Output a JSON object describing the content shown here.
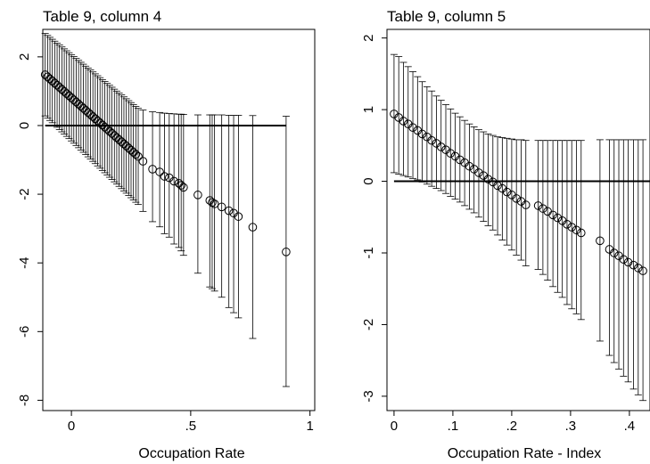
{
  "chart_data": [
    {
      "type": "scatter",
      "title": "Table 9, column 4",
      "xlabel": "Occupation Rate",
      "ylabel": "",
      "xlim": [
        -0.12,
        1.02
      ],
      "ylim": [
        -8.3,
        2.8
      ],
      "xticks": [
        {
          "value": 0,
          "label": "0"
        },
        {
          "value": 0.5,
          "label": ".5"
        },
        {
          "value": 1,
          "label": "1"
        }
      ],
      "yticks": [
        {
          "value": 2,
          "label": "2"
        },
        {
          "value": 0,
          "label": "0"
        },
        {
          "value": -2,
          "label": "-2"
        },
        {
          "value": -4,
          "label": "-4"
        },
        {
          "value": -6,
          "label": "-6"
        },
        {
          "value": -8,
          "label": "-8"
        }
      ],
      "reference_line": {
        "y": 0,
        "x_from": -0.11,
        "x_to": 0.9
      },
      "series": [
        {
          "dense_segment": {
            "x_from": -0.11,
            "x_to": 0.28,
            "step": 0.01,
            "y_from": 1.48,
            "y_to": -0.9,
            "lo_from": 0.28,
            "lo_to": -2.3,
            "hi_from": 2.68,
            "hi_to": 0.5
          },
          "points": [
            {
              "x": 0.3,
              "y": -1.04,
              "lo": -2.5,
              "hi": 0.45
            },
            {
              "x": 0.34,
              "y": -1.27,
              "lo": -2.8,
              "hi": 0.4
            },
            {
              "x": 0.37,
              "y": -1.35,
              "lo": -2.95,
              "hi": 0.38
            },
            {
              "x": 0.39,
              "y": -1.48,
              "lo": -3.15,
              "hi": 0.36
            },
            {
              "x": 0.41,
              "y": -1.52,
              "lo": -3.25,
              "hi": 0.35
            },
            {
              "x": 0.43,
              "y": -1.62,
              "lo": -3.45,
              "hi": 0.34
            },
            {
              "x": 0.45,
              "y": -1.68,
              "lo": -3.55,
              "hi": 0.33
            },
            {
              "x": 0.46,
              "y": -1.74,
              "lo": -3.65,
              "hi": 0.33
            },
            {
              "x": 0.47,
              "y": -1.8,
              "lo": -3.78,
              "hi": 0.32
            },
            {
              "x": 0.53,
              "y": -2.02,
              "lo": -4.3,
              "hi": 0.31
            },
            {
              "x": 0.58,
              "y": -2.18,
              "lo": -4.7,
              "hi": 0.31
            },
            {
              "x": 0.59,
              "y": -2.24,
              "lo": -4.75,
              "hi": 0.31
            },
            {
              "x": 0.6,
              "y": -2.28,
              "lo": -4.82,
              "hi": 0.31
            },
            {
              "x": 0.63,
              "y": -2.37,
              "lo": -5.0,
              "hi": 0.31
            },
            {
              "x": 0.66,
              "y": -2.48,
              "lo": -5.3,
              "hi": 0.3
            },
            {
              "x": 0.68,
              "y": -2.55,
              "lo": -5.45,
              "hi": 0.3
            },
            {
              "x": 0.7,
              "y": -2.65,
              "lo": -5.6,
              "hi": 0.3
            },
            {
              "x": 0.76,
              "y": -2.96,
              "lo": -6.2,
              "hi": 0.29
            },
            {
              "x": 0.9,
              "y": -3.68,
              "lo": -7.6,
              "hi": 0.27
            }
          ]
        }
      ]
    },
    {
      "type": "scatter",
      "title": "Table 9, column 5",
      "xlabel": "Occupation Rate - Index",
      "ylabel": "",
      "xlim": [
        -0.012,
        0.435
      ],
      "ylim": [
        -3.2,
        2.12
      ],
      "xticks": [
        {
          "value": 0,
          "label": "0"
        },
        {
          "value": 0.1,
          "label": ".1"
        },
        {
          "value": 0.2,
          "label": ".2"
        },
        {
          "value": 0.3,
          "label": ".3"
        },
        {
          "value": 0.4,
          "label": ".4"
        }
      ],
      "yticks": [
        {
          "value": 2,
          "label": "2"
        },
        {
          "value": 1,
          "label": "1"
        },
        {
          "value": 0,
          "label": "0"
        },
        {
          "value": -1,
          "label": "-1"
        },
        {
          "value": -2,
          "label": "-2"
        },
        {
          "value": -3,
          "label": "-3"
        }
      ],
      "reference_line": {
        "y": 0,
        "x_from": 0,
        "x_to": 0.435
      },
      "series": [
        {
          "points": [
            {
              "x": 0.0,
              "y": 0.94,
              "lo": 0.12,
              "hi": 1.77
            },
            {
              "x": 0.008,
              "y": 0.89,
              "lo": 0.1,
              "hi": 1.74
            },
            {
              "x": 0.016,
              "y": 0.84,
              "lo": 0.08,
              "hi": 1.66
            },
            {
              "x": 0.024,
              "y": 0.8,
              "lo": 0.06,
              "hi": 1.6
            },
            {
              "x": 0.032,
              "y": 0.75,
              "lo": 0.04,
              "hi": 1.53
            },
            {
              "x": 0.04,
              "y": 0.71,
              "lo": 0.02,
              "hi": 1.46
            },
            {
              "x": 0.048,
              "y": 0.66,
              "lo": -0.01,
              "hi": 1.39
            },
            {
              "x": 0.056,
              "y": 0.62,
              "lo": -0.04,
              "hi": 1.32
            },
            {
              "x": 0.064,
              "y": 0.57,
              "lo": -0.07,
              "hi": 1.26
            },
            {
              "x": 0.072,
              "y": 0.53,
              "lo": -0.1,
              "hi": 1.19
            },
            {
              "x": 0.08,
              "y": 0.48,
              "lo": -0.13,
              "hi": 1.13
            },
            {
              "x": 0.088,
              "y": 0.44,
              "lo": -0.17,
              "hi": 1.07
            },
            {
              "x": 0.096,
              "y": 0.39,
              "lo": -0.21,
              "hi": 1.01
            },
            {
              "x": 0.104,
              "y": 0.35,
              "lo": -0.25,
              "hi": 0.95
            },
            {
              "x": 0.112,
              "y": 0.3,
              "lo": -0.29,
              "hi": 0.9
            },
            {
              "x": 0.12,
              "y": 0.26,
              "lo": -0.34,
              "hi": 0.85
            },
            {
              "x": 0.128,
              "y": 0.21,
              "lo": -0.39,
              "hi": 0.8
            },
            {
              "x": 0.136,
              "y": 0.17,
              "lo": -0.44,
              "hi": 0.76
            },
            {
              "x": 0.144,
              "y": 0.12,
              "lo": -0.5,
              "hi": 0.72
            },
            {
              "x": 0.152,
              "y": 0.08,
              "lo": -0.56,
              "hi": 0.69
            },
            {
              "x": 0.16,
              "y": 0.03,
              "lo": -0.62,
              "hi": 0.66
            },
            {
              "x": 0.168,
              "y": -0.01,
              "lo": -0.68,
              "hi": 0.64
            },
            {
              "x": 0.176,
              "y": -0.06,
              "lo": -0.75,
              "hi": 0.62
            },
            {
              "x": 0.184,
              "y": -0.1,
              "lo": -0.82,
              "hi": 0.61
            },
            {
              "x": 0.192,
              "y": -0.15,
              "lo": -0.89,
              "hi": 0.6
            },
            {
              "x": 0.2,
              "y": -0.19,
              "lo": -0.96,
              "hi": 0.59
            },
            {
              "x": 0.208,
              "y": -0.24,
              "lo": -1.03,
              "hi": 0.58
            },
            {
              "x": 0.216,
              "y": -0.28,
              "lo": -1.1,
              "hi": 0.58
            },
            {
              "x": 0.224,
              "y": -0.33,
              "lo": -1.18,
              "hi": 0.57
            },
            {
              "x": 0.245,
              "y": -0.34,
              "lo": -1.23,
              "hi": 0.57
            },
            {
              "x": 0.253,
              "y": -0.38,
              "lo": -1.3,
              "hi": 0.57
            },
            {
              "x": 0.261,
              "y": -0.42,
              "lo": -1.38,
              "hi": 0.57
            },
            {
              "x": 0.27,
              "y": -0.47,
              "lo": -1.47,
              "hi": 0.57
            },
            {
              "x": 0.278,
              "y": -0.51,
              "lo": -1.55,
              "hi": 0.57
            },
            {
              "x": 0.286,
              "y": -0.55,
              "lo": -1.62,
              "hi": 0.57
            },
            {
              "x": 0.294,
              "y": -0.6,
              "lo": -1.72,
              "hi": 0.57
            },
            {
              "x": 0.302,
              "y": -0.64,
              "lo": -1.78,
              "hi": 0.57
            },
            {
              "x": 0.31,
              "y": -0.68,
              "lo": -1.85,
              "hi": 0.57
            },
            {
              "x": 0.318,
              "y": -0.72,
              "lo": -1.93,
              "hi": 0.57
            },
            {
              "x": 0.35,
              "y": -0.83,
              "lo": -2.23,
              "hi": 0.58
            },
            {
              "x": 0.366,
              "y": -0.95,
              "lo": -2.43,
              "hi": 0.58
            },
            {
              "x": 0.374,
              "y": -1.0,
              "lo": -2.53,
              "hi": 0.58
            },
            {
              "x": 0.382,
              "y": -1.04,
              "lo": -2.62,
              "hi": 0.58
            },
            {
              "x": 0.39,
              "y": -1.09,
              "lo": -2.72,
              "hi": 0.58
            },
            {
              "x": 0.398,
              "y": -1.13,
              "lo": -2.8,
              "hi": 0.58
            },
            {
              "x": 0.407,
              "y": -1.17,
              "lo": -2.9,
              "hi": 0.58
            },
            {
              "x": 0.415,
              "y": -1.21,
              "lo": -2.98,
              "hi": 0.58
            },
            {
              "x": 0.423,
              "y": -1.25,
              "lo": -3.06,
              "hi": 0.58
            }
          ]
        }
      ]
    }
  ]
}
